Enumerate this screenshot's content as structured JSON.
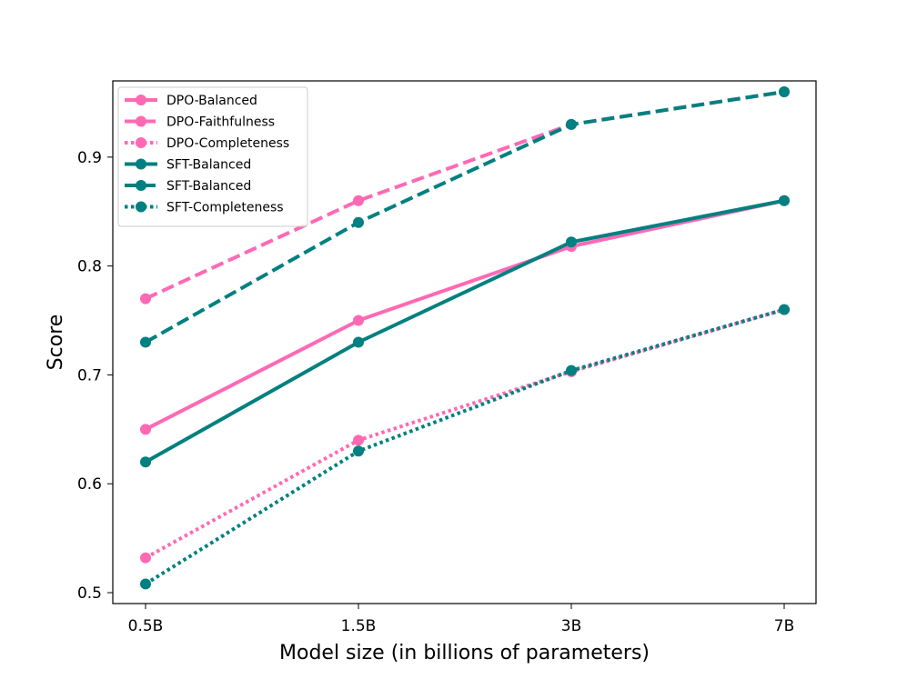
{
  "chart_data": {
    "type": "line",
    "title": "",
    "xlabel": "Model size (in billions of parameters)",
    "ylabel": "Score",
    "categories": [
      "0.5B",
      "1.5B",
      "3B",
      "7B"
    ],
    "ylim": [
      0.49,
      0.97
    ],
    "yticks": [
      0.5,
      0.6,
      0.7,
      0.8,
      0.9
    ],
    "ytick_labels": [
      "0.5",
      "0.6",
      "0.7",
      "0.8",
      "0.9"
    ],
    "grid": false,
    "legend_position": "top-left",
    "series": [
      {
        "name": "DPO-Balanced",
        "color": "#ff69b4",
        "style": "solid",
        "values": [
          0.65,
          0.75,
          0.818,
          0.86
        ]
      },
      {
        "name": "DPO-Faithfulness",
        "color": "#ff69b4",
        "style": "dashed",
        "values": [
          0.77,
          0.86,
          0.93,
          0.96
        ]
      },
      {
        "name": "DPO-Completeness",
        "color": "#ff69b4",
        "style": "dotted",
        "values": [
          0.532,
          0.64,
          0.703,
          0.76
        ]
      },
      {
        "name": "SFT-Balanced",
        "color": "#008080",
        "style": "solid",
        "values": [
          0.62,
          0.73,
          0.822,
          0.86
        ]
      },
      {
        "name": "SFT-Balanced",
        "color": "#008080",
        "style": "dashed",
        "values": [
          0.73,
          0.84,
          0.93,
          0.96
        ]
      },
      {
        "name": "SFT-Completeness",
        "color": "#008080",
        "style": "dotted",
        "values": [
          0.508,
          0.63,
          0.704,
          0.76
        ]
      }
    ]
  }
}
